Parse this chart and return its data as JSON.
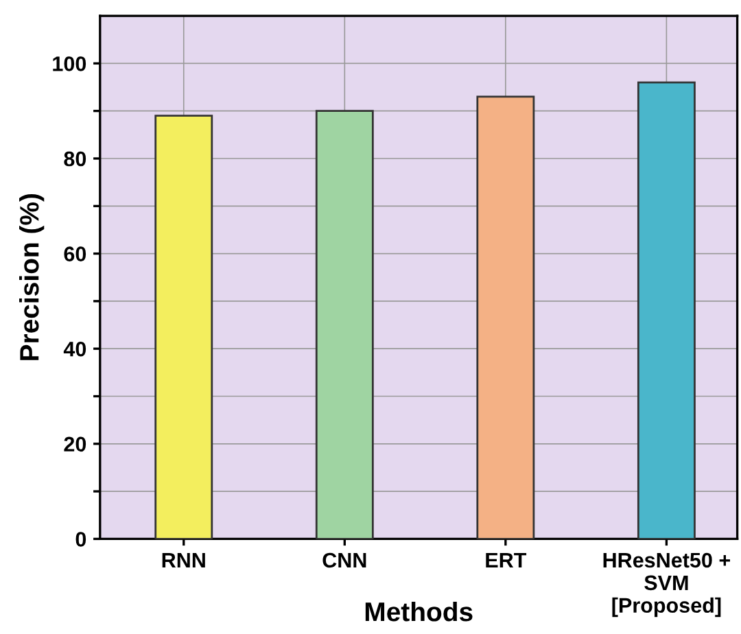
{
  "chart_data": {
    "type": "bar",
    "xlabel": "Methods",
    "ylabel": "Precision (%)",
    "categories": [
      "RNN",
      "CNN",
      "ERT",
      "HResNet50 +\nSVM\n[Proposed]"
    ],
    "values": [
      89,
      90,
      93,
      96
    ],
    "colors": [
      "#f3ee5e",
      "#9fd4a2",
      "#f4b185",
      "#4ab6cb"
    ],
    "ylim": [
      0,
      110
    ],
    "yticks": [
      0,
      {
        "value": 10,
        "label": null
      },
      20,
      {
        "value": 30,
        "label": null
      },
      40,
      {
        "value": 50,
        "label": null
      },
      60,
      {
        "value": 70,
        "label": null
      },
      80,
      {
        "value": 90,
        "label": null
      },
      100
    ],
    "grid": true
  }
}
